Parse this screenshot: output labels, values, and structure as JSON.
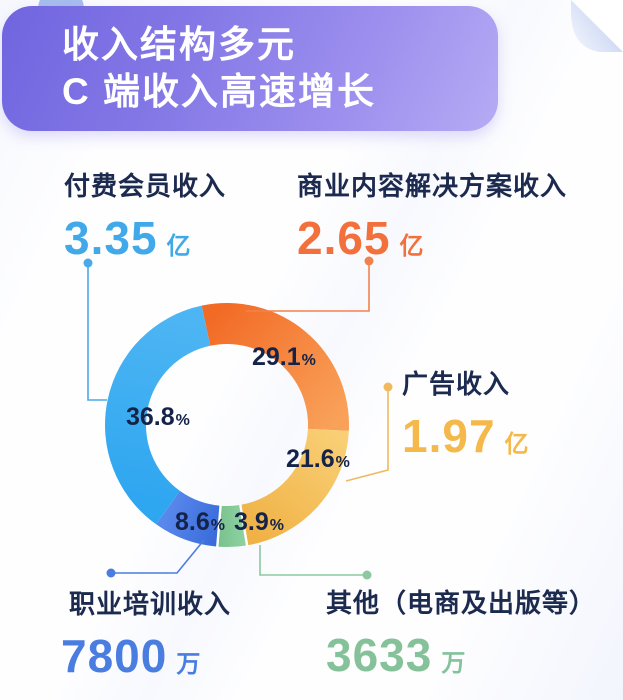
{
  "header": {
    "title_line1": "收入结构多元",
    "title_line2": "C 端收入高速增长"
  },
  "chart_data": {
    "type": "pie",
    "subtype": "donut",
    "title": "收入结构多元 C 端收入高速增长",
    "start_angle_deg": -12,
    "direction": "clockwise",
    "segments": [
      {
        "key": "commercial_content",
        "label": "商业内容解决方案收入",
        "value": "2.65",
        "unit": "亿",
        "percent": 29.1,
        "color_start": "#f26b26",
        "color_end": "#f9a159",
        "text_color": "#f2703b"
      },
      {
        "key": "advertising",
        "label": "广告收入",
        "value": "1.97",
        "unit": "亿",
        "percent": 21.6,
        "color_start": "#f9ce74",
        "color_end": "#f0b246",
        "text_color": "#f5b84a"
      },
      {
        "key": "others",
        "label": "其他（电商及出版等）",
        "value": "3633",
        "unit": "万",
        "percent": 3.9,
        "color_start": "#8ed1a1",
        "color_end": "#79c28e",
        "text_color": "#85c29a"
      },
      {
        "key": "vocational_training",
        "label": "职业培训收入",
        "value": "7800",
        "unit": "万",
        "percent": 8.6,
        "color_start": "#3a6cdb",
        "color_end": "#5988ec",
        "text_color": "#4a7de0"
      },
      {
        "key": "paid_membership",
        "label": "付费会员收入",
        "value": "3.35",
        "unit": "亿",
        "percent": 36.8,
        "color_start": "#2ea6f0",
        "color_end": "#4db5f3",
        "text_color": "#41a9ea"
      }
    ],
    "percent_suffix": "%"
  }
}
